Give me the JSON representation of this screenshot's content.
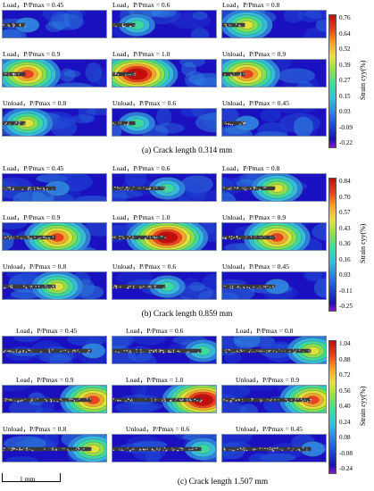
{
  "panels": [
    {
      "caption": "(a)  Crack length 0.314 mm",
      "colorbar_title": "Strain εyy(%)",
      "ticks": [
        "0.76",
        "0.64",
        "0.52",
        "0.39",
        "0.27",
        "0.15",
        "0.03",
        "-0.09",
        "-0.22"
      ],
      "crack_length_mm": 0.314,
      "labels": [
        "Load，P/Pmax = 0.45",
        "Load，P/Pmax = 0.6",
        "Load，P/Pmax = 0.8",
        "Load，P/Pmax = 0.9",
        "Load，P/Pmax = 1.0",
        "Unload，P/Pmax = 0.9",
        "Unload，P/Pmax = 0.8",
        "Unload，P/Pmax = 0.6",
        "Unload，P/Pmax = 0.45"
      ],
      "hot_intensity": [
        0.05,
        0.25,
        0.5,
        0.75,
        1.0,
        0.75,
        0.5,
        0.25,
        0.05
      ]
    },
    {
      "caption": "(b)  Crack length 0.859 mm",
      "colorbar_title": "Strain εyy(%)",
      "ticks": [
        "0.84",
        "0.70",
        "0.57",
        "0.43",
        "0.30",
        "0.16",
        "0.03",
        "-0.11",
        "-0.25"
      ],
      "crack_length_mm": 0.859,
      "labels": [
        "Load，P/Pmax = 0.45",
        "Load，P/Pmax = 0.6",
        "Load，P/Pmax = 0.8",
        "Load，P/Pmax = 0.9",
        "Load，P/Pmax = 1.0",
        "Unload，P/Pmax = 0.9",
        "Unload，P/Pmax = 0.8",
        "Unload，P/Pmax = 0.6",
        "Unload，P/Pmax = 0.45"
      ],
      "hot_intensity": [
        0.05,
        0.25,
        0.5,
        0.75,
        1.0,
        0.75,
        0.5,
        0.25,
        0.05
      ]
    },
    {
      "caption": "(c) Crack length 1.507 mm",
      "colorbar_title": "Strain εyy(%)",
      "ticks": [
        "1.04",
        "0.88",
        "0.72",
        "0.56",
        "0.40",
        "0.24",
        "0.08",
        "-0.08",
        "-0.24"
      ],
      "crack_length_mm": 1.507,
      "labels": [
        "Load，P/Pmax = 0.45",
        "Load，P/Pmax = 0.6",
        "Load，P/Pmax = 0.8",
        "Load，P/Pmax = 0.9",
        "Load，P/Pmax = 1.0",
        "Unload，P/Pmax = 0.9",
        "Unload，P/Pmax = 0.8",
        "Unload，P/Pmax = 0.6",
        "Unload，P/Pmax = 0.45"
      ],
      "hot_intensity": [
        0.05,
        0.25,
        0.5,
        0.75,
        1.0,
        0.75,
        0.5,
        0.25,
        0.05
      ]
    }
  ],
  "scale_bar": {
    "label": "1 mm",
    "length_mm": 1
  },
  "colormap": [
    "#1a10c0",
    "#1f49d6",
    "#2f86e0",
    "#36c0dc",
    "#3fdc9c",
    "#8fe04a",
    "#e8e23a",
    "#f7a02a",
    "#ee3a1e",
    "#c80a0a"
  ]
}
